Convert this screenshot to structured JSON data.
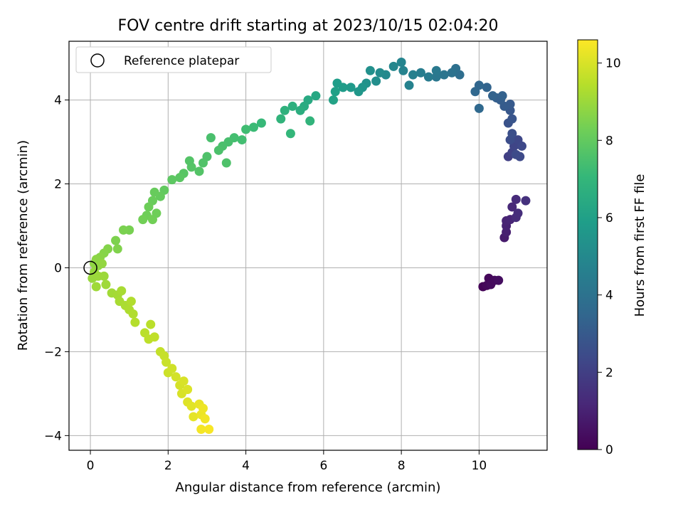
{
  "chart_data": {
    "type": "scatter",
    "title": "FOV centre drift starting at 2023/10/15 02:04:20",
    "xlabel": "Angular distance from reference (arcmin)",
    "ylabel": "Rotation from reference (arcmin)",
    "xlim": [
      -0.55,
      11.75
    ],
    "ylim": [
      -4.35,
      5.4
    ],
    "x_ticks": [
      0,
      2,
      4,
      6,
      8,
      10
    ],
    "y_ticks": [
      -4,
      -2,
      0,
      2,
      4
    ],
    "x_tick_labels": [
      "0",
      "2",
      "4",
      "6",
      "8",
      "10"
    ],
    "y_tick_labels": [
      "−4",
      "−2",
      "0",
      "2",
      "4"
    ],
    "grid": true,
    "legend": {
      "placement": "top-left",
      "entries": [
        "Reference platepar"
      ]
    },
    "reference_point": {
      "x": 0,
      "y": 0,
      "marker": "open-circle"
    },
    "colorbar": {
      "label": "Hours from first FF file",
      "range": [
        0,
        10.6
      ],
      "ticks": [
        0,
        2,
        4,
        6,
        8,
        10
      ],
      "tick_labels": [
        "0",
        "2",
        "4",
        "6",
        "8",
        "10"
      ],
      "colormap": "viridis",
      "colormap_stops": [
        "#440154",
        "#482878",
        "#3e4989",
        "#31688e",
        "#26828e",
        "#1f9e89",
        "#35b779",
        "#6ece58",
        "#b5de2b",
        "#fde725"
      ]
    },
    "series": [
      {
        "points": [
          {
            "x": 10.1,
            "y": -0.45,
            "t": 0.1
          },
          {
            "x": 10.2,
            "y": -0.42,
            "t": 0.2
          },
          {
            "x": 10.25,
            "y": -0.25,
            "t": 0.2
          },
          {
            "x": 10.3,
            "y": -0.4,
            "t": 0.3
          },
          {
            "x": 10.4,
            "y": -0.3,
            "t": 0.3
          },
          {
            "x": 10.5,
            "y": -0.3,
            "t": 0.4
          },
          {
            "x": 10.65,
            "y": 0.72,
            "t": 0.8
          },
          {
            "x": 10.7,
            "y": 0.85,
            "t": 0.9
          },
          {
            "x": 10.7,
            "y": 1.0,
            "t": 1.0
          },
          {
            "x": 10.7,
            "y": 1.12,
            "t": 1.05
          },
          {
            "x": 10.8,
            "y": 1.15,
            "t": 1.1
          },
          {
            "x": 10.85,
            "y": 1.45,
            "t": 1.2
          },
          {
            "x": 10.95,
            "y": 1.63,
            "t": 1.3
          },
          {
            "x": 10.95,
            "y": 1.2,
            "t": 1.35
          },
          {
            "x": 11.0,
            "y": 1.3,
            "t": 1.4
          },
          {
            "x": 11.2,
            "y": 1.6,
            "t": 1.5
          },
          {
            "x": 10.75,
            "y": 2.65,
            "t": 2.0
          },
          {
            "x": 10.85,
            "y": 2.75,
            "t": 2.1
          },
          {
            "x": 10.9,
            "y": 2.9,
            "t": 2.2
          },
          {
            "x": 11.0,
            "y": 3.05,
            "t": 2.3
          },
          {
            "x": 11.1,
            "y": 2.9,
            "t": 2.35
          },
          {
            "x": 11.05,
            "y": 2.65,
            "t": 2.4
          },
          {
            "x": 10.95,
            "y": 2.7,
            "t": 2.45
          },
          {
            "x": 10.8,
            "y": 3.05,
            "t": 2.5
          },
          {
            "x": 10.85,
            "y": 3.2,
            "t": 2.6
          },
          {
            "x": 10.75,
            "y": 3.45,
            "t": 2.7
          },
          {
            "x": 10.85,
            "y": 3.55,
            "t": 2.8
          },
          {
            "x": 10.8,
            "y": 3.75,
            "t": 2.9
          },
          {
            "x": 10.8,
            "y": 3.9,
            "t": 3.0
          },
          {
            "x": 10.65,
            "y": 3.85,
            "t": 3.05
          },
          {
            "x": 10.55,
            "y": 4.0,
            "t": 3.1
          },
          {
            "x": 10.45,
            "y": 4.05,
            "t": 3.2
          },
          {
            "x": 10.6,
            "y": 4.1,
            "t": 3.3
          },
          {
            "x": 10.35,
            "y": 4.1,
            "t": 3.35
          },
          {
            "x": 10.2,
            "y": 4.3,
            "t": 3.4
          },
          {
            "x": 10.0,
            "y": 4.35,
            "t": 3.5
          },
          {
            "x": 9.9,
            "y": 4.2,
            "t": 3.55
          },
          {
            "x": 10.0,
            "y": 3.8,
            "t": 3.6
          },
          {
            "x": 9.5,
            "y": 4.6,
            "t": 3.8
          },
          {
            "x": 9.4,
            "y": 4.75,
            "t": 3.9
          },
          {
            "x": 9.3,
            "y": 4.65,
            "t": 4.0
          },
          {
            "x": 9.1,
            "y": 4.6,
            "t": 4.1
          },
          {
            "x": 8.9,
            "y": 4.55,
            "t": 4.2
          },
          {
            "x": 8.9,
            "y": 4.7,
            "t": 4.3
          },
          {
            "x": 8.7,
            "y": 4.55,
            "t": 4.4
          },
          {
            "x": 8.5,
            "y": 4.65,
            "t": 4.5
          },
          {
            "x": 8.3,
            "y": 4.6,
            "t": 4.6
          },
          {
            "x": 8.2,
            "y": 4.35,
            "t": 4.7
          },
          {
            "x": 8.05,
            "y": 4.7,
            "t": 4.75
          },
          {
            "x": 8.0,
            "y": 4.9,
            "t": 4.8
          },
          {
            "x": 7.8,
            "y": 4.8,
            "t": 4.9
          },
          {
            "x": 7.6,
            "y": 4.6,
            "t": 5.0
          },
          {
            "x": 7.45,
            "y": 4.65,
            "t": 5.1
          },
          {
            "x": 7.35,
            "y": 4.45,
            "t": 5.2
          },
          {
            "x": 7.2,
            "y": 4.7,
            "t": 5.3
          },
          {
            "x": 7.1,
            "y": 4.4,
            "t": 5.4
          },
          {
            "x": 7.0,
            "y": 4.3,
            "t": 5.5
          },
          {
            "x": 6.9,
            "y": 4.2,
            "t": 5.6
          },
          {
            "x": 6.7,
            "y": 4.3,
            "t": 5.7
          },
          {
            "x": 6.5,
            "y": 4.3,
            "t": 5.8
          },
          {
            "x": 6.35,
            "y": 4.4,
            "t": 5.9
          },
          {
            "x": 6.3,
            "y": 4.2,
            "t": 6.0
          },
          {
            "x": 6.25,
            "y": 4.0,
            "t": 6.1
          },
          {
            "x": 5.8,
            "y": 4.1,
            "t": 6.3
          },
          {
            "x": 5.6,
            "y": 4.0,
            "t": 6.4
          },
          {
            "x": 5.5,
            "y": 3.85,
            "t": 6.5
          },
          {
            "x": 5.4,
            "y": 3.75,
            "t": 6.6
          },
          {
            "x": 5.2,
            "y": 3.85,
            "t": 6.7
          },
          {
            "x": 5.0,
            "y": 3.75,
            "t": 6.8
          },
          {
            "x": 4.9,
            "y": 3.55,
            "t": 6.9
          },
          {
            "x": 5.15,
            "y": 3.2,
            "t": 7.0
          },
          {
            "x": 5.65,
            "y": 3.5,
            "t": 6.9
          },
          {
            "x": 4.4,
            "y": 3.45,
            "t": 7.1
          },
          {
            "x": 4.2,
            "y": 3.35,
            "t": 7.2
          },
          {
            "x": 4.0,
            "y": 3.3,
            "t": 7.3
          },
          {
            "x": 3.9,
            "y": 3.05,
            "t": 7.35
          },
          {
            "x": 3.7,
            "y": 3.1,
            "t": 7.4
          },
          {
            "x": 3.55,
            "y": 3.0,
            "t": 7.45
          },
          {
            "x": 3.4,
            "y": 2.9,
            "t": 7.5
          },
          {
            "x": 3.3,
            "y": 2.8,
            "t": 7.55
          },
          {
            "x": 3.1,
            "y": 3.1,
            "t": 7.5
          },
          {
            "x": 3.5,
            "y": 2.5,
            "t": 7.6
          },
          {
            "x": 3.0,
            "y": 2.65,
            "t": 7.6
          },
          {
            "x": 2.9,
            "y": 2.5,
            "t": 7.65
          },
          {
            "x": 2.8,
            "y": 2.3,
            "t": 7.7
          },
          {
            "x": 2.6,
            "y": 2.4,
            "t": 7.75
          },
          {
            "x": 2.55,
            "y": 2.55,
            "t": 7.7
          },
          {
            "x": 2.4,
            "y": 2.25,
            "t": 7.8
          },
          {
            "x": 2.3,
            "y": 2.15,
            "t": 7.85
          },
          {
            "x": 2.1,
            "y": 2.1,
            "t": 7.9
          },
          {
            "x": 1.9,
            "y": 1.85,
            "t": 8.0
          },
          {
            "x": 1.8,
            "y": 1.7,
            "t": 8.05
          },
          {
            "x": 1.65,
            "y": 1.8,
            "t": 8.1
          },
          {
            "x": 1.6,
            "y": 1.6,
            "t": 8.15
          },
          {
            "x": 1.5,
            "y": 1.45,
            "t": 8.2
          },
          {
            "x": 1.45,
            "y": 1.25,
            "t": 8.25
          },
          {
            "x": 1.35,
            "y": 1.15,
            "t": 8.3
          },
          {
            "x": 1.6,
            "y": 1.15,
            "t": 8.3
          },
          {
            "x": 1.7,
            "y": 1.3,
            "t": 8.25
          },
          {
            "x": 1.0,
            "y": 0.9,
            "t": 8.4
          },
          {
            "x": 0.85,
            "y": 0.9,
            "t": 8.45
          },
          {
            "x": 0.65,
            "y": 0.65,
            "t": 8.5
          },
          {
            "x": 0.7,
            "y": 0.45,
            "t": 8.55
          },
          {
            "x": 0.45,
            "y": 0.45,
            "t": 8.6
          },
          {
            "x": 0.35,
            "y": 0.35,
            "t": 8.65
          },
          {
            "x": 0.25,
            "y": 0.25,
            "t": 8.7
          },
          {
            "x": 0.15,
            "y": 0.2,
            "t": 8.75
          },
          {
            "x": 0.1,
            "y": 0.1,
            "t": 8.8
          },
          {
            "x": 0.2,
            "y": 0.05,
            "t": 8.8
          },
          {
            "x": 0.3,
            "y": 0.1,
            "t": 8.85
          },
          {
            "x": 0.1,
            "y": -0.1,
            "t": 8.9
          },
          {
            "x": 0.05,
            "y": -0.25,
            "t": 8.95
          },
          {
            "x": 0.2,
            "y": -0.2,
            "t": 9.0
          },
          {
            "x": 0.35,
            "y": -0.2,
            "t": 9.0
          },
          {
            "x": 0.4,
            "y": -0.4,
            "t": 9.05
          },
          {
            "x": 0.15,
            "y": -0.45,
            "t": 9.05
          },
          {
            "x": 0.55,
            "y": -0.6,
            "t": 9.1
          },
          {
            "x": 0.7,
            "y": -0.65,
            "t": 9.15
          },
          {
            "x": 0.8,
            "y": -0.55,
            "t": 9.2
          },
          {
            "x": 0.75,
            "y": -0.8,
            "t": 9.2
          },
          {
            "x": 0.9,
            "y": -0.9,
            "t": 9.25
          },
          {
            "x": 1.0,
            "y": -1.0,
            "t": 9.3
          },
          {
            "x": 1.1,
            "y": -1.1,
            "t": 9.35
          },
          {
            "x": 1.05,
            "y": -0.8,
            "t": 9.35
          },
          {
            "x": 1.15,
            "y": -1.3,
            "t": 9.4
          },
          {
            "x": 1.4,
            "y": -1.55,
            "t": 9.5
          },
          {
            "x": 1.55,
            "y": -1.35,
            "t": 9.5
          },
          {
            "x": 1.5,
            "y": -1.7,
            "t": 9.55
          },
          {
            "x": 1.65,
            "y": -1.65,
            "t": 9.6
          },
          {
            "x": 1.8,
            "y": -2.0,
            "t": 9.65
          },
          {
            "x": 1.9,
            "y": -2.1,
            "t": 9.7
          },
          {
            "x": 1.95,
            "y": -2.25,
            "t": 9.75
          },
          {
            "x": 2.0,
            "y": -2.5,
            "t": 9.8
          },
          {
            "x": 2.1,
            "y": -2.4,
            "t": 9.85
          },
          {
            "x": 2.2,
            "y": -2.6,
            "t": 9.9
          },
          {
            "x": 2.3,
            "y": -2.8,
            "t": 9.95
          },
          {
            "x": 2.4,
            "y": -2.7,
            "t": 10.0
          },
          {
            "x": 2.35,
            "y": -3.0,
            "t": 10.0
          },
          {
            "x": 2.5,
            "y": -2.9,
            "t": 10.05
          },
          {
            "x": 2.5,
            "y": -3.2,
            "t": 10.1
          },
          {
            "x": 2.6,
            "y": -3.3,
            "t": 10.15
          },
          {
            "x": 2.65,
            "y": -3.55,
            "t": 10.2
          },
          {
            "x": 2.8,
            "y": -3.25,
            "t": 10.25
          },
          {
            "x": 2.85,
            "y": -3.5,
            "t": 10.3
          },
          {
            "x": 2.9,
            "y": -3.35,
            "t": 10.35
          },
          {
            "x": 2.95,
            "y": -3.6,
            "t": 10.4
          },
          {
            "x": 2.85,
            "y": -3.85,
            "t": 10.45
          },
          {
            "x": 3.05,
            "y": -3.85,
            "t": 10.5
          }
        ]
      }
    ]
  }
}
